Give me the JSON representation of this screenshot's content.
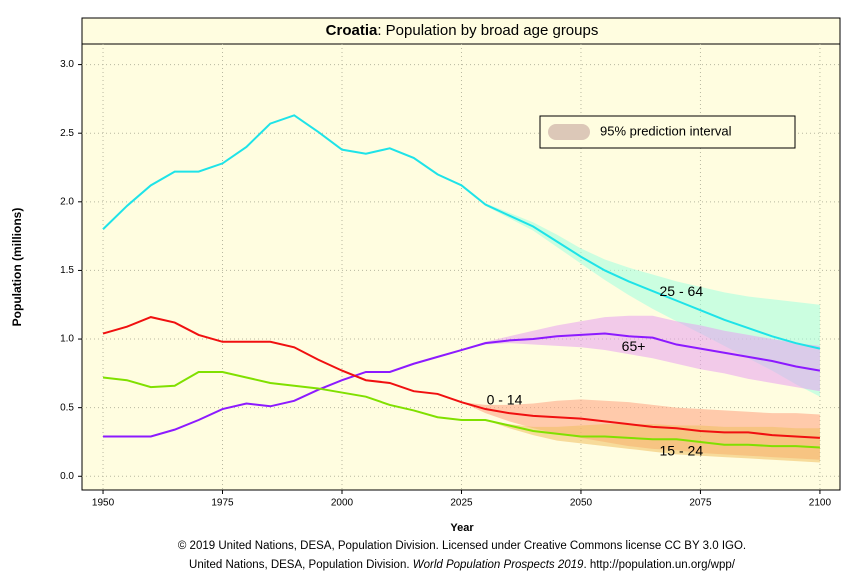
{
  "chart_data": {
    "type": "line",
    "title_country": "Croatia",
    "title_rest": ": Population by broad age groups",
    "x_label": "Year",
    "y_label": "Population (millions)",
    "interval_legend": "95% prediction interval",
    "interval_legend_color": "#dcc8b8",
    "footer_line1": "© 2019 United Nations, DESA, Population Division. Licensed under Creative Commons license CC BY 3.0 IGO.",
    "footer_line2_start": "United Nations, DESA, Population Division. ",
    "footer_line2_italic": "World Population Prospects 2019",
    "footer_line2_end": ". http://population.un.org/wpp/",
    "grid": true,
    "xlim": [
      1945.6,
      2104.2
    ],
    "ylim": [
      -0.1,
      3.15
    ],
    "xticks": [
      1950,
      1975,
      2000,
      2025,
      2050,
      2075,
      2100
    ],
    "yticks": [
      {
        "value": 0,
        "label": "0.0"
      },
      0.5,
      {
        "value": 1,
        "label": "1.0"
      },
      1.5,
      {
        "value": 2,
        "label": "2.0"
      },
      2.5,
      {
        "value": 3,
        "label": "3.0"
      }
    ],
    "x": [
      1950,
      1955,
      1960,
      1965,
      1970,
      1975,
      1980,
      1985,
      1990,
      1995,
      2000,
      2005,
      2010,
      2015,
      2020,
      2025,
      2030,
      2035,
      2040,
      2045,
      2050,
      2055,
      2060,
      2065,
      2070,
      2075,
      2080,
      2085,
      2090,
      2095,
      2100
    ],
    "series": [
      {
        "name": "25 - 64",
        "color": "#1ee3e8",
        "band_color": "#a0ffe0",
        "values": [
          1.8,
          1.97,
          2.12,
          2.22,
          2.22,
          2.28,
          2.4,
          2.57,
          2.63,
          2.51,
          2.38,
          2.35,
          2.39,
          2.32,
          2.2,
          2.12,
          1.98,
          1.9,
          1.82,
          1.71,
          1.6,
          1.5,
          1.42,
          1.35,
          1.28,
          1.21,
          1.14,
          1.08,
          1.02,
          0.97,
          0.93
        ],
        "lower": [
          null,
          null,
          null,
          null,
          null,
          null,
          null,
          null,
          null,
          null,
          null,
          null,
          null,
          null,
          2.2,
          2.12,
          1.97,
          1.88,
          1.79,
          1.67,
          1.55,
          1.43,
          1.32,
          1.22,
          1.13,
          1.04,
          0.95,
          0.86,
          0.77,
          0.67,
          0.58
        ],
        "upper": [
          null,
          null,
          null,
          null,
          null,
          null,
          null,
          null,
          null,
          null,
          null,
          null,
          null,
          null,
          2.2,
          2.13,
          1.99,
          1.92,
          1.85,
          1.76,
          1.66,
          1.58,
          1.52,
          1.47,
          1.42,
          1.38,
          1.34,
          1.31,
          1.29,
          1.27,
          1.25
        ],
        "label_at": [
          2071,
          1.34
        ]
      },
      {
        "name": "65+",
        "color": "#8c1aff",
        "band_color": "#e8a0f0",
        "values": [
          0.29,
          0.29,
          0.29,
          0.34,
          0.41,
          0.49,
          0.53,
          0.51,
          0.55,
          0.63,
          0.7,
          0.76,
          0.76,
          0.82,
          0.87,
          0.92,
          0.97,
          0.99,
          1.0,
          1.02,
          1.03,
          1.04,
          1.02,
          1.01,
          0.96,
          0.93,
          0.9,
          0.87,
          0.84,
          0.8,
          0.77
        ],
        "lower": [
          null,
          null,
          null,
          null,
          null,
          null,
          null,
          null,
          null,
          null,
          null,
          null,
          null,
          null,
          0.87,
          0.92,
          0.96,
          0.97,
          0.96,
          0.95,
          0.94,
          0.92,
          0.89,
          0.86,
          0.82,
          0.78,
          0.75,
          0.71,
          0.68,
          0.65,
          0.62
        ],
        "upper": [
          null,
          null,
          null,
          null,
          null,
          null,
          null,
          null,
          null,
          null,
          null,
          null,
          null,
          null,
          0.87,
          0.92,
          0.98,
          1.02,
          1.06,
          1.1,
          1.13,
          1.16,
          1.17,
          1.17,
          1.13,
          1.1,
          1.06,
          1.03,
          1.0,
          0.97,
          0.95
        ],
        "label_at": [
          2061,
          0.94
        ]
      },
      {
        "name": "0 - 14",
        "color": "#f01010",
        "band_color": "#ffa080",
        "values": [
          1.04,
          1.09,
          1.16,
          1.12,
          1.03,
          0.98,
          0.98,
          0.98,
          0.94,
          0.85,
          0.77,
          0.7,
          0.68,
          0.62,
          0.6,
          0.54,
          0.49,
          0.46,
          0.44,
          0.43,
          0.42,
          0.4,
          0.38,
          0.36,
          0.35,
          0.33,
          0.32,
          0.32,
          0.3,
          0.29,
          0.28
        ],
        "lower": [
          null,
          null,
          null,
          null,
          null,
          null,
          null,
          null,
          null,
          null,
          null,
          null,
          null,
          null,
          0.6,
          0.54,
          0.46,
          0.4,
          0.35,
          0.31,
          0.28,
          0.25,
          0.22,
          0.2,
          0.19,
          0.17,
          0.16,
          0.15,
          0.14,
          0.13,
          0.12
        ],
        "upper": [
          null,
          null,
          null,
          null,
          null,
          null,
          null,
          null,
          null,
          null,
          null,
          null,
          null,
          null,
          0.6,
          0.54,
          0.52,
          0.52,
          0.53,
          0.55,
          0.56,
          0.55,
          0.54,
          0.52,
          0.5,
          0.49,
          0.48,
          0.47,
          0.46,
          0.46,
          0.45
        ],
        "label_at": [
          2034,
          0.55
        ]
      },
      {
        "name": "15 - 24",
        "color": "#80e000",
        "band_color": "#f0c060",
        "values": [
          0.72,
          0.7,
          0.65,
          0.66,
          0.76,
          0.76,
          0.72,
          0.68,
          0.66,
          0.64,
          0.61,
          0.58,
          0.52,
          0.48,
          0.43,
          0.41,
          0.41,
          0.37,
          0.33,
          0.31,
          0.29,
          0.29,
          0.28,
          0.27,
          0.27,
          0.25,
          0.23,
          0.23,
          0.22,
          0.22,
          0.21
        ],
        "lower": [
          null,
          null,
          null,
          null,
          null,
          null,
          null,
          null,
          null,
          null,
          null,
          null,
          null,
          null,
          0.43,
          0.41,
          0.41,
          0.35,
          0.3,
          0.26,
          0.24,
          0.22,
          0.2,
          0.18,
          0.16,
          0.15,
          0.14,
          0.13,
          0.12,
          0.11,
          0.1
        ],
        "upper": [
          null,
          null,
          null,
          null,
          null,
          null,
          null,
          null,
          null,
          null,
          null,
          null,
          null,
          null,
          0.43,
          0.41,
          0.41,
          0.38,
          0.36,
          0.36,
          0.37,
          0.38,
          0.38,
          0.38,
          0.37,
          0.37,
          0.36,
          0.36,
          0.36,
          0.35,
          0.35
        ],
        "label_at": [
          2071,
          0.18
        ]
      }
    ]
  }
}
